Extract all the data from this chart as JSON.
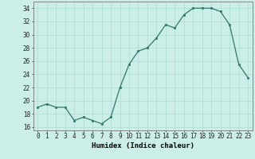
{
  "x": [
    0,
    1,
    2,
    3,
    4,
    5,
    6,
    7,
    8,
    9,
    10,
    11,
    12,
    13,
    14,
    15,
    16,
    17,
    18,
    19,
    20,
    21,
    22,
    23
  ],
  "y": [
    19,
    19.5,
    19,
    19,
    17,
    17.5,
    17,
    16.5,
    17.5,
    22,
    25.5,
    27.5,
    28,
    29.5,
    31.5,
    31,
    33,
    34,
    34,
    34,
    33.5,
    31.5,
    25.5,
    23.5
  ],
  "line_color": "#2d7a6a",
  "marker_color": "#2d7a6a",
  "bg_color": "#cceee8",
  "grid_color": "#aaddcc",
  "xlabel": "Humidex (Indice chaleur)",
  "ylim": [
    15.5,
    35
  ],
  "xlim": [
    -0.5,
    23.5
  ],
  "yticks": [
    16,
    18,
    20,
    22,
    24,
    26,
    28,
    30,
    32,
    34
  ],
  "xticks": [
    0,
    1,
    2,
    3,
    4,
    5,
    6,
    7,
    8,
    9,
    10,
    11,
    12,
    13,
    14,
    15,
    16,
    17,
    18,
    19,
    20,
    21,
    22,
    23
  ],
  "xlabel_fontsize": 6.5,
  "tick_fontsize": 5.5,
  "linewidth": 0.9,
  "markersize": 2.0
}
